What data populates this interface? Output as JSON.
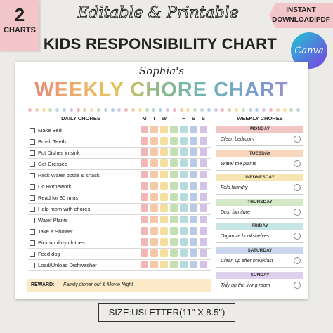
{
  "badge": {
    "number": "2",
    "label": "CHARTS"
  },
  "header": {
    "line1": "Editable & Printable",
    "line2": "KIDS RESPONSIBILITY CHART"
  },
  "ribbon": {
    "line1": "INSTANT",
    "line2": "DOWNLOAD|PDF"
  },
  "canva": "Canva",
  "chart": {
    "name": "Sophia's",
    "title": "WEEKLY CHORE CHART",
    "daily_header": "DAILY CHORES",
    "days": [
      "M",
      "T",
      "W",
      "T",
      "F",
      "S",
      "S"
    ],
    "chores": [
      "Make Bed",
      "Brush Teeth",
      "Put Dishes in sink",
      "Get Dressed",
      "Pack Water bottle & snack",
      "Do Homework",
      "Read for 30 mins",
      "Help mom with chores",
      "Water Plants",
      "Take a Shower",
      "Pick up dirty clothes",
      "Feed dog",
      "Load/Unload Dishwasher"
    ],
    "reward": {
      "label": "REWARD:",
      "text": "Family dinner out & Movie Night"
    },
    "weekly_header": "WEEKLY CHORES",
    "weekly": [
      {
        "day": "MONDAY",
        "task": "Clean bedroom"
      },
      {
        "day": "TUESDAY",
        "task": "Water the plants"
      },
      {
        "day": "WEDNESDAY",
        "task": "Fold laundry"
      },
      {
        "day": "THURSDAY",
        "task": "Dust furniture"
      },
      {
        "day": "FRIDAY",
        "task": "Organize bookshelves"
      },
      {
        "day": "SATURDAY",
        "task": "Clean up after breakfast"
      },
      {
        "day": "SUNDAY",
        "task": "Tidy up the living room"
      }
    ]
  },
  "size": "SIZE:USLETTER(11\" X 8.5\")"
}
